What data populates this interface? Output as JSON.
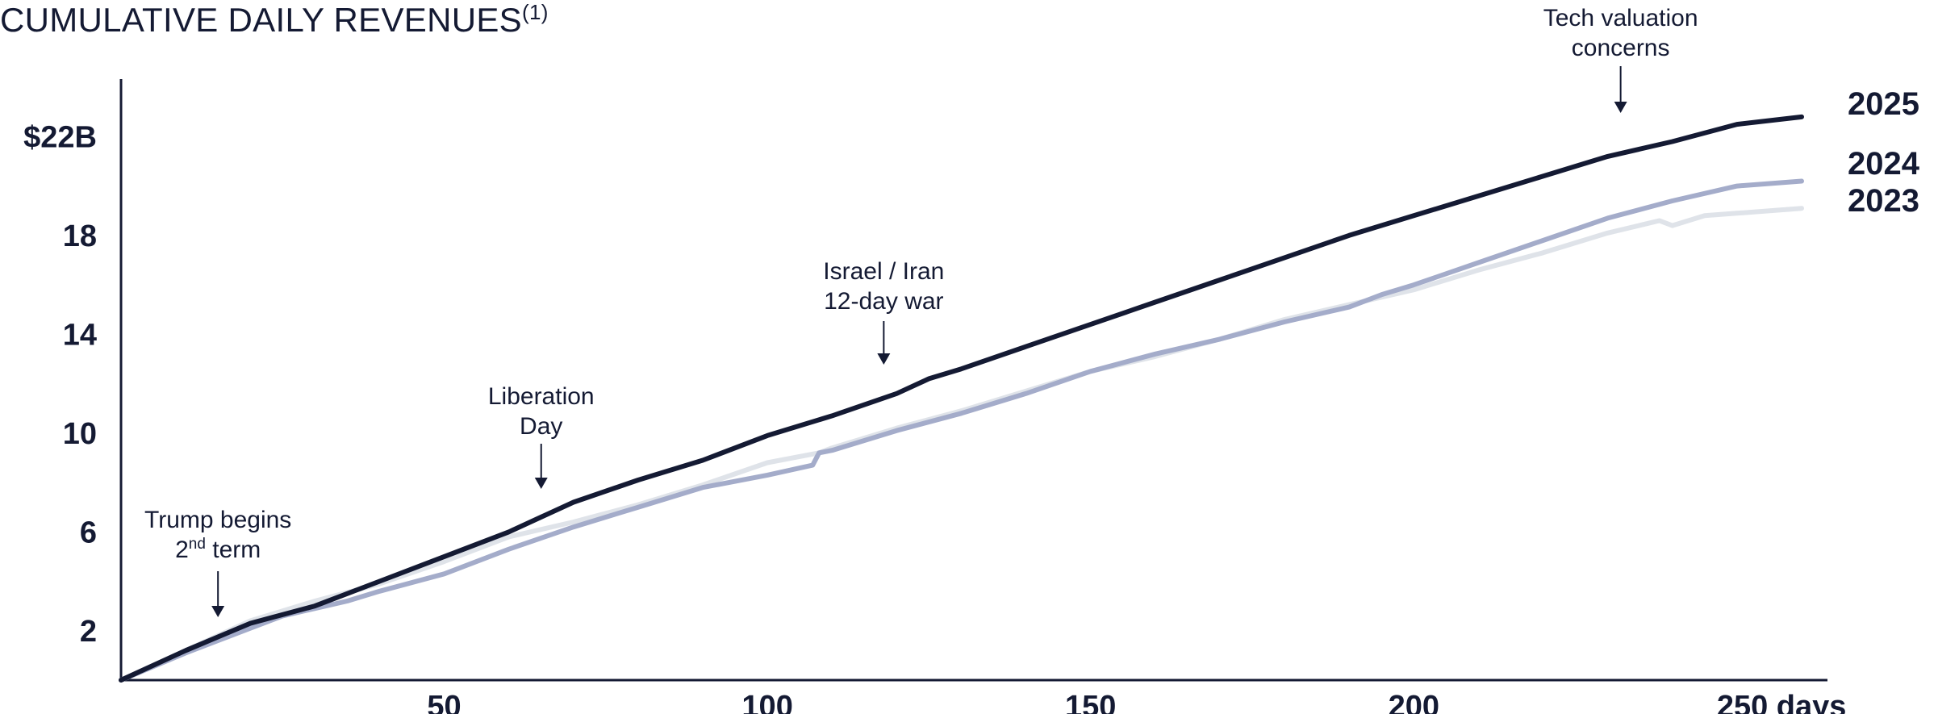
{
  "page": {
    "title": "CUMULATIVE DAILY REVENUES",
    "title_footnote": "(1)"
  },
  "chart_data": {
    "type": "line",
    "title": "CUMULATIVE DAILY REVENUES(1)",
    "xlabel": "days",
    "ylabel": "",
    "xlim": [
      0,
      264
    ],
    "ylim": [
      0,
      24.2
    ],
    "grid": false,
    "legend": "labels at right end of lines",
    "y_ticks": [
      {
        "value": 2,
        "label": "2"
      },
      {
        "value": 6,
        "label": "6"
      },
      {
        "value": 10,
        "label": "10"
      },
      {
        "value": 14,
        "label": "14"
      },
      {
        "value": 18,
        "label": "18"
      },
      {
        "value": 22,
        "label": "$22B"
      }
    ],
    "x_ticks": [
      {
        "value": 50,
        "label": "50"
      },
      {
        "value": 100,
        "label": "100"
      },
      {
        "value": 150,
        "label": "150"
      },
      {
        "value": 200,
        "label": "200"
      },
      {
        "value": 250,
        "label": "250 days"
      }
    ],
    "series": [
      {
        "name": "2023",
        "color": "#dfe3e9",
        "x": [
          0,
          10,
          20,
          30,
          40,
          50,
          60,
          70,
          80,
          90,
          100,
          108,
          110,
          120,
          130,
          140,
          150,
          160,
          170,
          180,
          190,
          200,
          210,
          220,
          230,
          238,
          240,
          245,
          250,
          260
        ],
        "y": [
          0,
          1.2,
          2.4,
          3.2,
          3.9,
          4.8,
          5.8,
          6.4,
          7.1,
          7.9,
          8.8,
          9.2,
          9.4,
          10.2,
          10.9,
          11.7,
          12.5,
          13.1,
          13.8,
          14.6,
          15.2,
          15.8,
          16.6,
          17.3,
          18.1,
          18.6,
          18.4,
          18.8,
          18.9,
          19.1
        ]
      },
      {
        "name": "2024",
        "color": "#a4acca",
        "x": [
          0,
          10,
          20,
          25,
          30,
          35,
          40,
          50,
          60,
          70,
          80,
          90,
          100,
          107,
          108,
          110,
          120,
          130,
          140,
          150,
          160,
          170,
          180,
          190,
          195,
          200,
          210,
          220,
          230,
          240,
          250,
          260
        ],
        "y": [
          0,
          1.1,
          2.1,
          2.6,
          2.9,
          3.2,
          3.6,
          4.3,
          5.3,
          6.2,
          7.0,
          7.8,
          8.3,
          8.7,
          9.2,
          9.3,
          10.1,
          10.8,
          11.6,
          12.5,
          13.2,
          13.8,
          14.5,
          15.1,
          15.6,
          16.0,
          16.9,
          17.8,
          18.7,
          19.4,
          20.0,
          20.2
        ]
      },
      {
        "name": "2025",
        "color": "#141a33",
        "x": [
          0,
          10,
          20,
          30,
          40,
          50,
          60,
          65,
          70,
          80,
          90,
          100,
          110,
          120,
          125,
          130,
          140,
          150,
          160,
          170,
          180,
          190,
          200,
          210,
          220,
          230,
          240,
          250,
          260
        ],
        "y": [
          0,
          1.2,
          2.3,
          3.0,
          4.0,
          5.0,
          6.0,
          6.6,
          7.2,
          8.1,
          8.9,
          9.9,
          10.7,
          11.6,
          12.2,
          12.6,
          13.5,
          14.4,
          15.3,
          16.2,
          17.1,
          18.0,
          18.8,
          19.6,
          20.4,
          21.2,
          21.8,
          22.5,
          22.8
        ]
      }
    ],
    "annotations": [
      {
        "id": "trump",
        "lines": [
          "Trump begins",
          "2nd term"
        ],
        "x": 15
      },
      {
        "id": "liberation",
        "lines": [
          "Liberation",
          "Day"
        ],
        "x": 65
      },
      {
        "id": "israel",
        "lines": [
          "Israel / Iran",
          "12-day war"
        ],
        "x": 118
      },
      {
        "id": "tech",
        "lines": [
          "Tech valuation",
          "concerns"
        ],
        "x": 232
      }
    ]
  }
}
